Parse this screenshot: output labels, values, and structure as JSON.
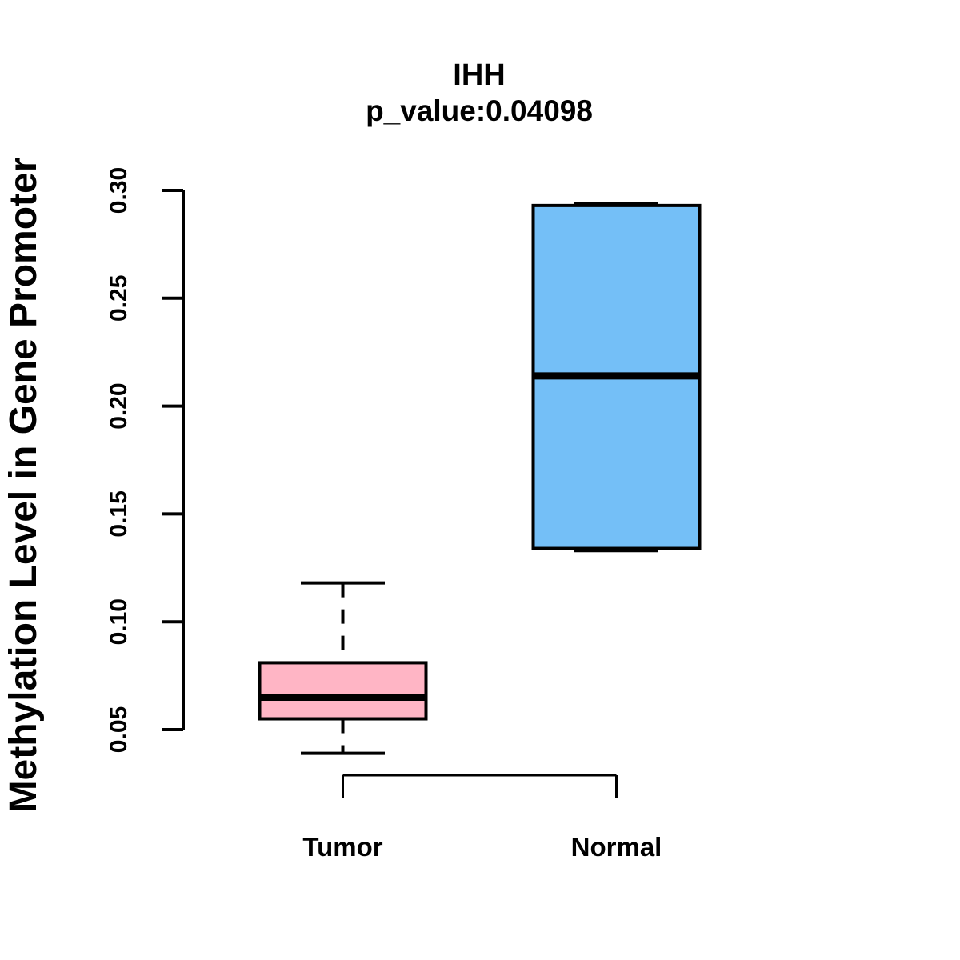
{
  "chart_data": {
    "type": "boxplot",
    "title": "IHH",
    "subtitle": "p_value:0.04098",
    "ylabel": "Methylation Level in Gene Promoter",
    "xlabel": "",
    "y_tick_values": [
      0.05,
      0.1,
      0.15,
      0.2,
      0.25,
      0.3
    ],
    "y_tick_labels": [
      "0.05",
      "0.10",
      "0.15",
      "0.20",
      "0.25",
      "0.30"
    ],
    "ylim": [
      0.035,
      0.305
    ],
    "grid": false,
    "legend": "none",
    "categories": [
      "Tumor",
      "Normal"
    ],
    "series": [
      {
        "name": "Tumor",
        "fill_color": "#FFB5C5",
        "stats": {
          "whisker_low": 0.039,
          "q1": 0.055,
          "median": 0.065,
          "q3": 0.081,
          "whisker_high": 0.118
        }
      },
      {
        "name": "Normal",
        "fill_color": "#74BFF7",
        "stats": {
          "whisker_low": 0.133,
          "q1": 0.134,
          "median": 0.214,
          "q3": 0.293,
          "whisker_high": 0.294
        }
      }
    ],
    "stroke_color": "#000000",
    "background_color": "#FFFFFF"
  }
}
